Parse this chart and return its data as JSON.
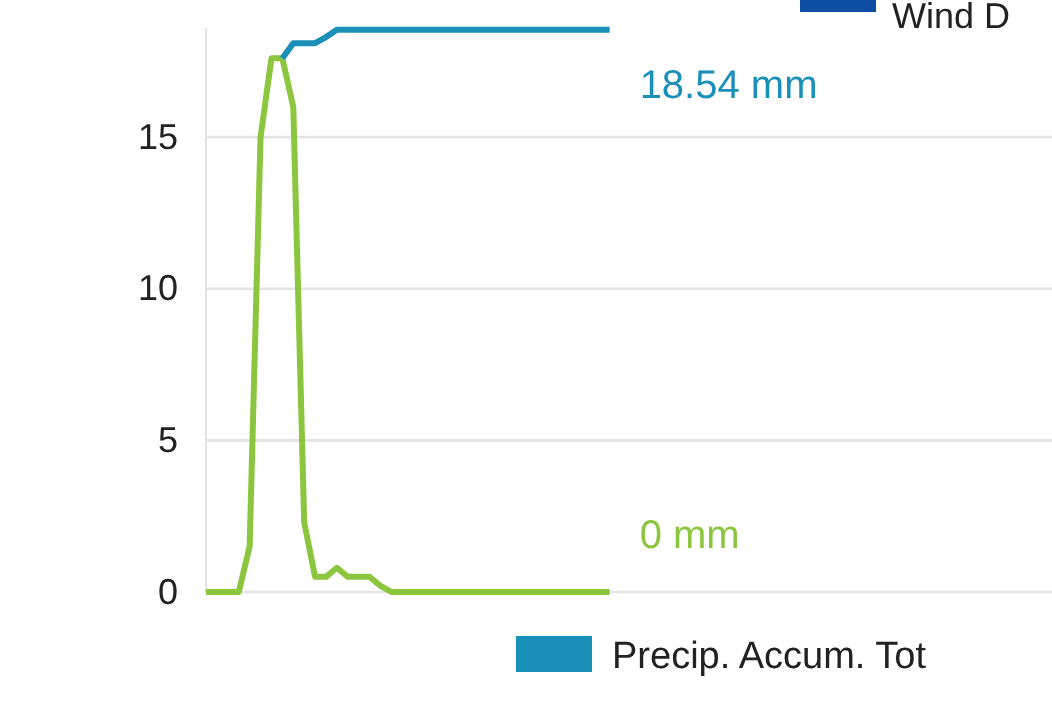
{
  "chart_data": {
    "type": "line",
    "categories": [
      null,
      null,
      null,
      null,
      null,
      null,
      null,
      null,
      null,
      null,
      null,
      null,
      null,
      null,
      null,
      null,
      null,
      null,
      null,
      null,
      null,
      null,
      null,
      null,
      null,
      null,
      null,
      null,
      null,
      null,
      null,
      null,
      null,
      null,
      null,
      null,
      null,
      null,
      null,
      null,
      null,
      null,
      null,
      null,
      null,
      null,
      null,
      null,
      null,
      null,
      null,
      null,
      null,
      null,
      null,
      null,
      null,
      null,
      null,
      null,
      null,
      null,
      null,
      null,
      null,
      null,
      null,
      null,
      null,
      null,
      null,
      null,
      null,
      null,
      null,
      null,
      null,
      null
    ],
    "ylim": [
      0,
      18.6
    ],
    "yticks": [
      0,
      5,
      10,
      15
    ],
    "grid": "y",
    "tick_labels": "y",
    "legend": "bottom",
    "marker": "none",
    "line_style": "solid",
    "series": [
      {
        "color": "#8cc63f",
        "values": [
          0,
          0,
          0,
          0,
          1.5,
          15,
          17.6,
          17.6,
          16,
          2.3,
          0.5,
          0.5,
          0.8,
          0.5,
          0.5,
          0.5,
          0.2,
          0,
          0,
          0,
          0,
          0,
          0,
          0,
          0,
          0,
          0,
          0,
          0,
          0,
          0,
          0,
          0,
          0,
          0,
          0,
          0,
          0,
          null,
          null,
          null,
          null,
          null,
          null,
          null,
          null,
          null,
          null,
          null,
          null,
          null,
          null,
          null,
          null,
          null,
          null,
          null,
          null,
          null,
          null,
          null,
          null,
          null,
          null,
          null,
          null,
          null,
          null,
          null,
          null,
          null,
          null,
          null,
          null,
          null,
          null,
          null,
          null
        ]
      },
      {
        "name": "Precip. Accum. Tot",
        "color": "#1a8fb8",
        "values": [
          null,
          null,
          null,
          null,
          null,
          null,
          null,
          17.6,
          18.1,
          18.1,
          18.1,
          18.3,
          18.54,
          18.54,
          18.54,
          18.54,
          18.54,
          18.54,
          18.54,
          18.54,
          18.54,
          18.54,
          18.54,
          18.54,
          18.54,
          18.54,
          18.54,
          18.54,
          18.54,
          18.54,
          18.54,
          18.54,
          18.54,
          18.54,
          18.54,
          18.54,
          18.54,
          18.54,
          null,
          null,
          null,
          null,
          null,
          null,
          null,
          null,
          null,
          null,
          null,
          null,
          null,
          null,
          null,
          null,
          null,
          null,
          null,
          null,
          null,
          null,
          null,
          null,
          null,
          null,
          null,
          null,
          null,
          null,
          null,
          null,
          null,
          null,
          null,
          null,
          null,
          null,
          null,
          null
        ]
      }
    ],
    "annotations": [
      "0 mm",
      "18.54 mm",
      "Wind D"
    ]
  }
}
